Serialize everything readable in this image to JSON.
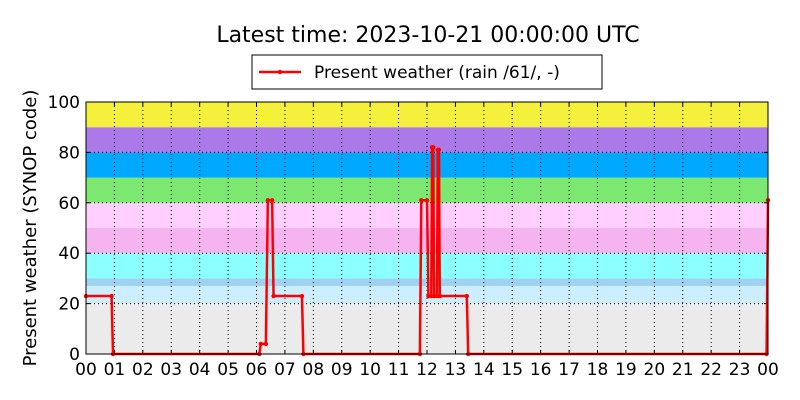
{
  "chart_data": {
    "type": "line",
    "title": "Latest time: 2023-10-21 00:00:00 UTC",
    "y_label": "Present weather (SYNOP code)",
    "xlim": [
      0,
      24
    ],
    "ylim": [
      0,
      100
    ],
    "xticks": [
      {
        "value": 0,
        "label": "00"
      },
      {
        "value": 1,
        "label": "01"
      },
      {
        "value": 2,
        "label": "02"
      },
      {
        "value": 3,
        "label": "03"
      },
      {
        "value": 4,
        "label": "04"
      },
      {
        "value": 5,
        "label": "05"
      },
      {
        "value": 6,
        "label": "06"
      },
      {
        "value": 7,
        "label": "07"
      },
      {
        "value": 8,
        "label": "08"
      },
      {
        "value": 9,
        "label": "09"
      },
      {
        "value": 10,
        "label": "10"
      },
      {
        "value": 11,
        "label": "11"
      },
      {
        "value": 12,
        "label": "12"
      },
      {
        "value": 13,
        "label": "13"
      },
      {
        "value": 14,
        "label": "14"
      },
      {
        "value": 15,
        "label": "15"
      },
      {
        "value": 16,
        "label": "16"
      },
      {
        "value": 17,
        "label": "17"
      },
      {
        "value": 18,
        "label": "18"
      },
      {
        "value": 19,
        "label": "19"
      },
      {
        "value": 20,
        "label": "20"
      },
      {
        "value": 21,
        "label": "21"
      },
      {
        "value": 22,
        "label": "22"
      },
      {
        "value": 23,
        "label": "23"
      },
      {
        "value": 24,
        "label": "00"
      }
    ],
    "yticks": [
      0,
      20,
      40,
      60,
      80,
      100
    ],
    "grid": true,
    "bands": [
      {
        "from": 0,
        "to": 20,
        "color": "#ebebeb"
      },
      {
        "from": 20,
        "to": 27,
        "color": "#cdeeff"
      },
      {
        "from": 27,
        "to": 30,
        "color": "#9fd2f2"
      },
      {
        "from": 30,
        "to": 40,
        "color": "#8cffff"
      },
      {
        "from": 40,
        "to": 50,
        "color": "#f5b4f0"
      },
      {
        "from": 50,
        "to": 60,
        "color": "#ffd0ff"
      },
      {
        "from": 60,
        "to": 70,
        "color": "#7ce872"
      },
      {
        "from": 70,
        "to": 80,
        "color": "#00a8ff"
      },
      {
        "from": 80,
        "to": 90,
        "color": "#ac7ae8"
      },
      {
        "from": 90,
        "to": 100,
        "color": "#f5f03c"
      }
    ],
    "series": [
      {
        "name": "Present weather (rain /61/, -)",
        "color": "#ff0000",
        "x": [
          0,
          0.9,
          0.95,
          6.1,
          6.15,
          6.33,
          6.4,
          6.55,
          6.6,
          7.6,
          7.65,
          11.75,
          11.8,
          12.0,
          12.05,
          12.15,
          12.18,
          12.22,
          12.25,
          12.35,
          12.38,
          12.42,
          12.45,
          13.4,
          13.45,
          23.95,
          24
        ],
        "values": [
          23,
          23,
          0,
          0,
          4,
          4,
          61,
          61,
          23,
          23,
          0,
          0,
          61,
          61,
          23,
          23,
          82,
          82,
          23,
          23,
          81,
          81,
          23,
          23,
          0,
          0,
          61
        ]
      }
    ],
    "legend_position": "top center"
  }
}
